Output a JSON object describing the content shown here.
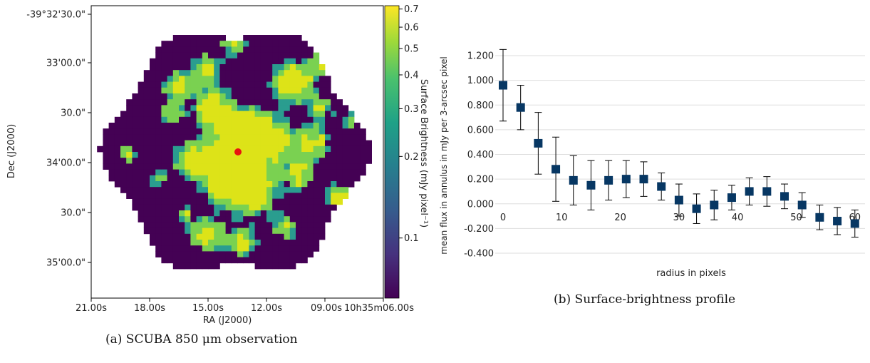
{
  "colors": {
    "background_pixel": "#440154",
    "bright_pixel": "#dde318",
    "mid_pixel": "#7ad151",
    "edge_pixel": "#2a9d8f",
    "marker": "#e8130f",
    "profile_marker": "#073763",
    "grid": "#dddddd",
    "error_bar": "#000000"
  },
  "chart_data": [
    {
      "type": "heatmap",
      "caption": "(a) SCUBA 850 μm observation",
      "xlabel": "RA (J2000)",
      "ylabel": "Dec (J2000)",
      "x_ticks": [
        "21.00s",
        "18.00s",
        "15.00s",
        "12.00s",
        "09.00s",
        "10h35m06.00s"
      ],
      "y_ticks": [
        "-39°32'30.0\"",
        "33'00.0\"",
        "30.0\"",
        "34'00.0\"",
        "30.0\"",
        "35'00.0\""
      ],
      "colorbar": {
        "label": "Surface Brightness (mJy pixel⁻¹)",
        "scale": "log",
        "ticks": [
          "0.7",
          "0.6",
          "0.5",
          "0.4",
          "0.3",
          "0.2",
          "0.1"
        ],
        "tick_values": [
          0.7,
          0.6,
          0.5,
          0.4,
          0.3,
          0.2,
          0.1
        ]
      },
      "marker": {
        "symbol": "filled-circle",
        "color": "red",
        "location": "map centre"
      }
    },
    {
      "type": "scatter",
      "caption": "(b) Surface-brightness profile",
      "xlabel": "radius in pixels",
      "ylabel": "mean flux in annulus in mJy per 3-arcsec pixel",
      "xlim": [
        0,
        61
      ],
      "ylim": [
        -0.4,
        1.2
      ],
      "x_ticks": [
        "0",
        "10",
        "20",
        "30",
        "40",
        "50",
        "60"
      ],
      "x_tick_values": [
        0,
        10,
        20,
        30,
        40,
        50,
        60
      ],
      "y_ticks": [
        "1.200",
        "1.000",
        "0.800",
        "0.600",
        "0.400",
        "0.200",
        "0.000",
        "-0.200",
        "-0.400"
      ],
      "y_tick_values": [
        1.2,
        1.0,
        0.8,
        0.6,
        0.4,
        0.2,
        0.0,
        -0.2,
        -0.4
      ],
      "grid": "horizontal",
      "points": [
        {
          "x": 0,
          "y": 0.96,
          "err": 0.29
        },
        {
          "x": 3,
          "y": 0.78,
          "err": 0.18
        },
        {
          "x": 6,
          "y": 0.49,
          "err": 0.25
        },
        {
          "x": 9,
          "y": 0.28,
          "err": 0.26
        },
        {
          "x": 12,
          "y": 0.19,
          "err": 0.2
        },
        {
          "x": 15,
          "y": 0.15,
          "err": 0.2
        },
        {
          "x": 18,
          "y": 0.19,
          "err": 0.16
        },
        {
          "x": 21,
          "y": 0.2,
          "err": 0.15
        },
        {
          "x": 24,
          "y": 0.2,
          "err": 0.14
        },
        {
          "x": 27,
          "y": 0.14,
          "err": 0.11
        },
        {
          "x": 30,
          "y": 0.03,
          "err": 0.13
        },
        {
          "x": 33,
          "y": -0.04,
          "err": 0.12
        },
        {
          "x": 36,
          "y": -0.01,
          "err": 0.12
        },
        {
          "x": 39,
          "y": 0.05,
          "err": 0.1
        },
        {
          "x": 42,
          "y": 0.1,
          "err": 0.11
        },
        {
          "x": 45,
          "y": 0.1,
          "err": 0.12
        },
        {
          "x": 48,
          "y": 0.06,
          "err": 0.1
        },
        {
          "x": 51,
          "y": -0.01,
          "err": 0.1
        },
        {
          "x": 54,
          "y": -0.11,
          "err": 0.1
        },
        {
          "x": 57,
          "y": -0.14,
          "err": 0.11
        },
        {
          "x": 60,
          "y": -0.16,
          "err": 0.11
        }
      ]
    }
  ]
}
